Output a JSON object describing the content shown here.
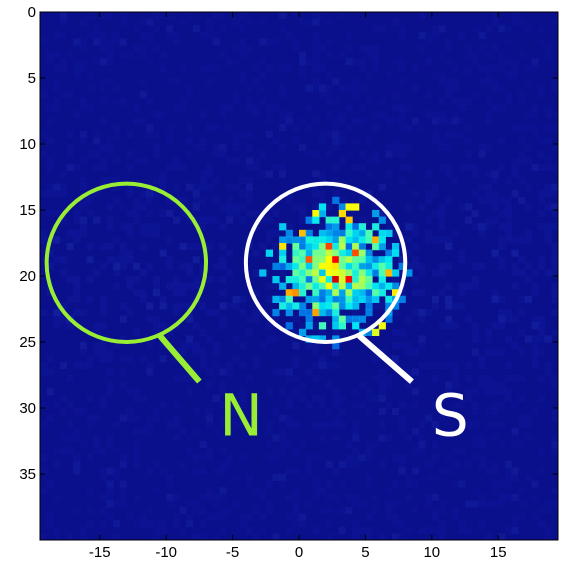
{
  "chart_data": {
    "type": "heatmap",
    "title": "",
    "xlabel": "",
    "ylabel": "",
    "xlim": [
      -19.5,
      19.5
    ],
    "ylim": [
      0,
      40
    ],
    "y_axis_direction": "down",
    "grid": false,
    "xticks": [
      -15,
      -10,
      -5,
      0,
      5,
      10,
      15
    ],
    "yticks": [
      0,
      5,
      10,
      15,
      20,
      25,
      30,
      35
    ],
    "colormap": "jet",
    "background_color": "#0a0f8c",
    "regions": [
      {
        "label": "N",
        "center": [
          -13,
          19
        ],
        "radius": 6,
        "color": "#99ee33",
        "callout_to": [
          -7.5,
          28
        ]
      },
      {
        "label": "S",
        "center": [
          2,
          19
        ],
        "radius": 6,
        "color": "#ffffff",
        "callout_to": [
          8.5,
          28
        ]
      }
    ],
    "signal_blob": {
      "center": [
        2.5,
        19.5
      ],
      "radius_x": 4.5,
      "radius_y": 4.5
    }
  }
}
